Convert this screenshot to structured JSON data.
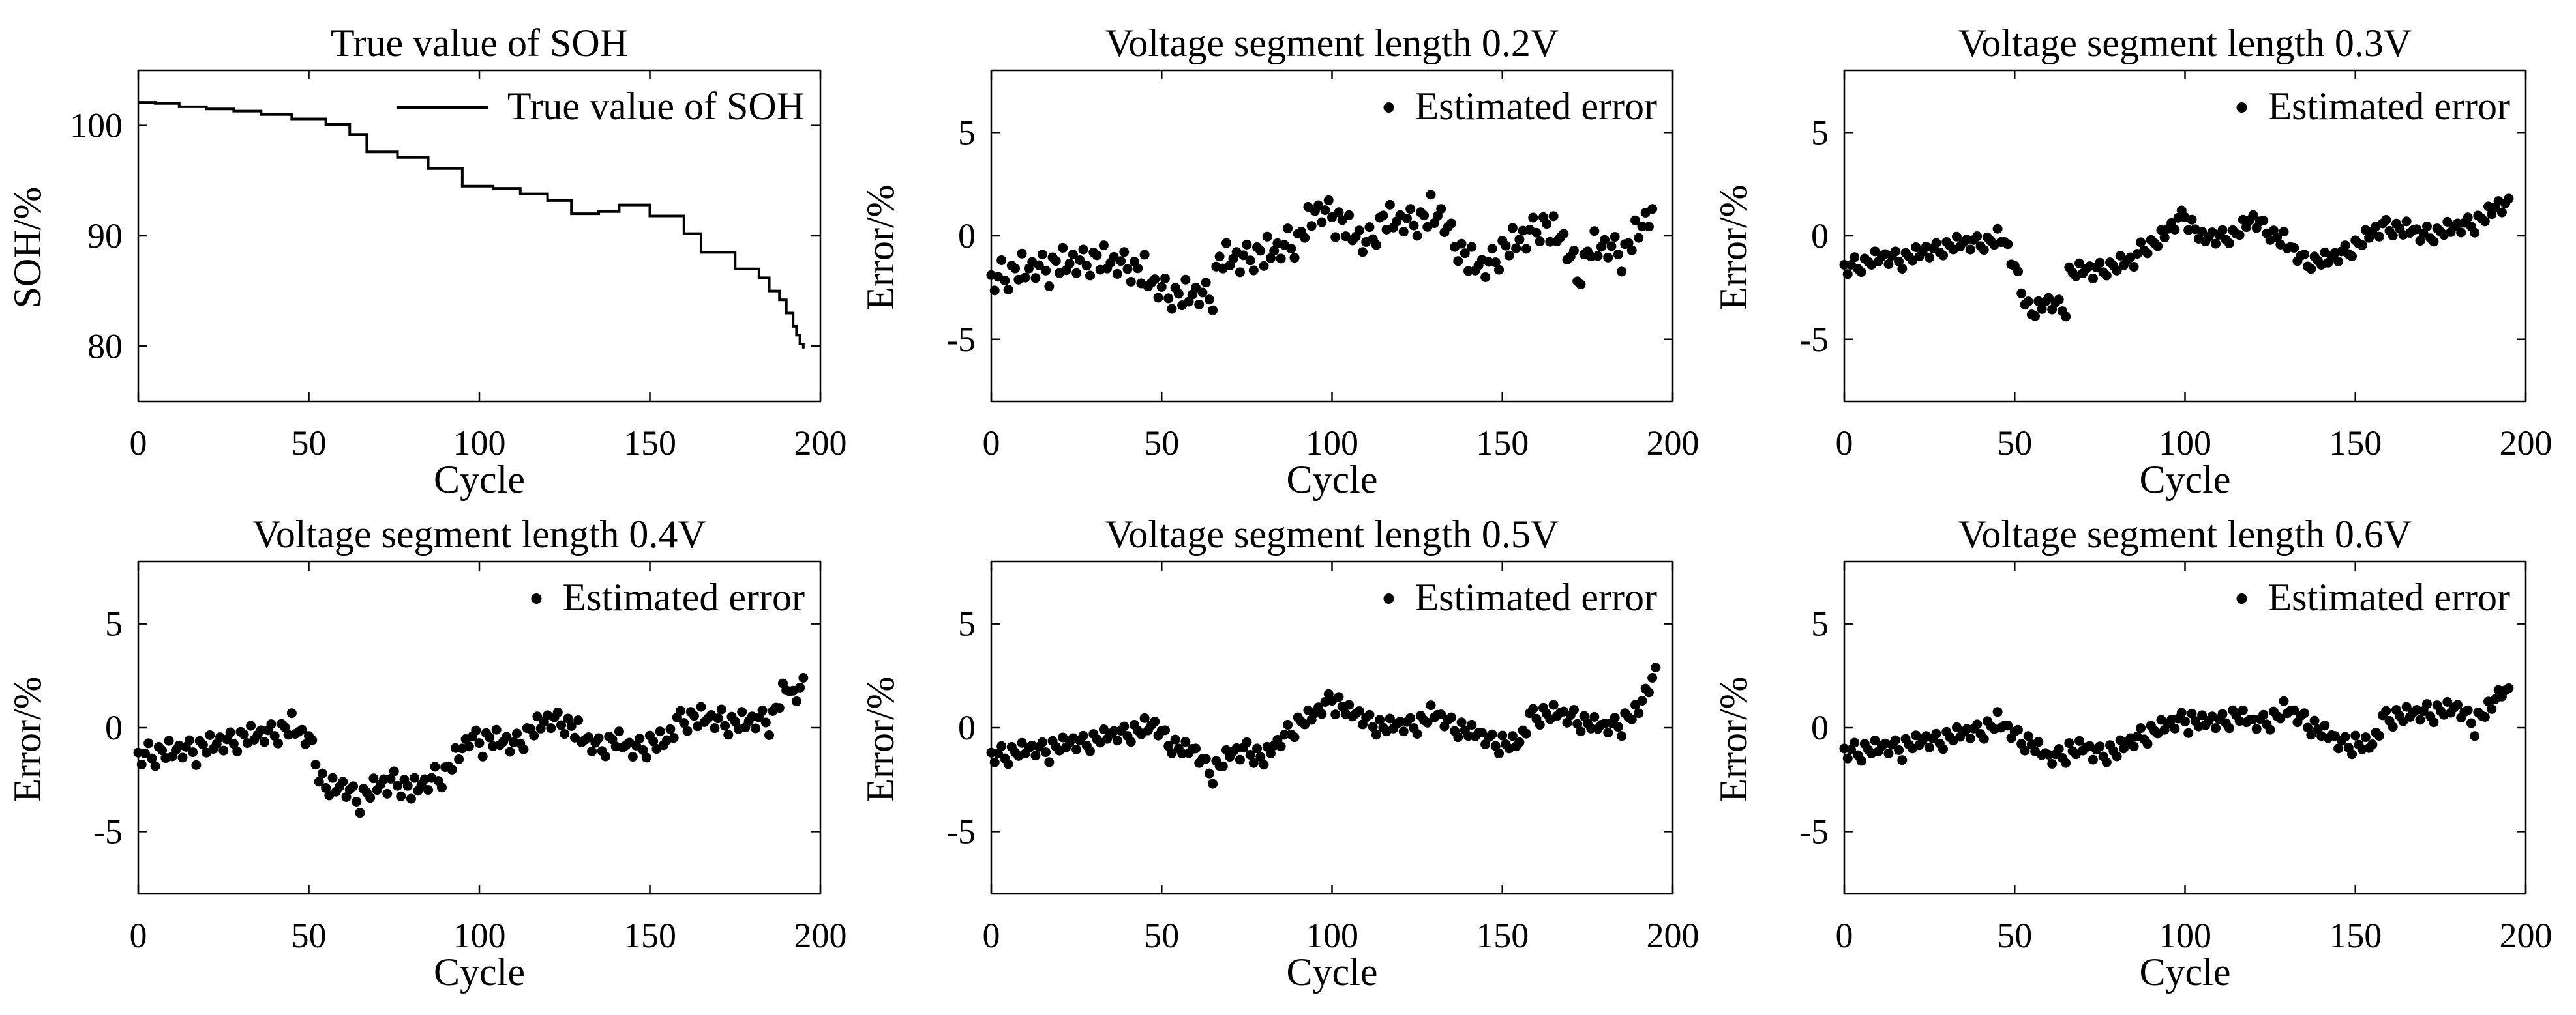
{
  "figure": {
    "background": "#ffffff",
    "ink": "#000000"
  },
  "chart_data": [
    {
      "type": "line",
      "title": "True value of SOH",
      "xlabel": "Cycle",
      "ylabel": "SOH/%",
      "xlim": [
        0,
        200
      ],
      "ylim": [
        75,
        105
      ],
      "xticks": [
        0,
        50,
        100,
        150,
        200
      ],
      "yticks": [
        80,
        90,
        100
      ],
      "grid": false,
      "legend": {
        "placement": "top-right",
        "entries": [
          {
            "label": "True value of SOH",
            "marker": "line"
          }
        ]
      },
      "series": [
        {
          "name": "True value of SOH",
          "style": "step",
          "x": [
            0,
            5,
            12,
            20,
            28,
            36,
            45,
            55,
            62,
            67,
            76,
            85,
            95,
            104,
            112,
            120,
            127,
            135,
            141,
            150,
            160,
            165,
            175,
            182,
            185,
            188,
            190,
            192,
            193,
            194,
            195
          ],
          "y": [
            102.1,
            102.0,
            101.7,
            101.5,
            101.3,
            101.0,
            100.6,
            100.1,
            99.2,
            97.6,
            97.1,
            96.1,
            94.5,
            94.3,
            93.8,
            93.2,
            92.0,
            92.2,
            92.8,
            91.8,
            90.2,
            88.5,
            87.0,
            86.2,
            85.0,
            84.2,
            83.0,
            81.8,
            81.0,
            80.2,
            79.8
          ]
        }
      ]
    },
    {
      "type": "scatter",
      "title": "Voltage segment length 0.2V",
      "xlabel": "Cycle",
      "ylabel": "Error/%",
      "xlim": [
        0,
        200
      ],
      "ylim": [
        -8,
        8
      ],
      "xticks": [
        0,
        50,
        100,
        150,
        200
      ],
      "yticks": [
        -5,
        0,
        5
      ],
      "grid": false,
      "legend": {
        "placement": "top-right",
        "entries": [
          {
            "label": "Estimated error",
            "marker": "dot"
          }
        ]
      },
      "series": [
        {
          "name": "Estimated error",
          "knots": [
            [
              0,
              -2.2
            ],
            [
              10,
              -1.6
            ],
            [
              30,
              -1.2
            ],
            [
              40,
              -1.4
            ],
            [
              48,
              -2.4
            ],
            [
              55,
              -3.0
            ],
            [
              60,
              -2.8
            ],
            [
              65,
              -2.9
            ],
            [
              67,
              -1.2
            ],
            [
              80,
              -0.9
            ],
            [
              90,
              -0.3
            ],
            [
              95,
              1.2
            ],
            [
              100,
              1.1
            ],
            [
              105,
              0.2
            ],
            [
              110,
              -0.4
            ],
            [
              115,
              0.7
            ],
            [
              125,
              0.7
            ],
            [
              132,
              1.0
            ],
            [
              135,
              0.0
            ],
            [
              140,
              -1.3
            ],
            [
              145,
              -1.5
            ],
            [
              150,
              -0.8
            ],
            [
              158,
              0.2
            ],
            [
              162,
              0.5
            ],
            [
              168,
              -0.2
            ],
            [
              172,
              -2.0
            ],
            [
              176,
              -0.6
            ],
            [
              180,
              -0.5
            ],
            [
              186,
              -0.8
            ],
            [
              190,
              0.2
            ],
            [
              194,
              1.2
            ]
          ],
          "offsets": [
            0.3,
            -0.5,
            0.1,
            0.6,
            -0.2,
            -0.7,
            0.4,
            0.2,
            -0.4,
            0.8,
            -0.3,
            0.0
          ]
        }
      ]
    },
    {
      "type": "scatter",
      "title": "Voltage segment length 0.3V",
      "xlabel": "Cycle",
      "ylabel": "Error/%",
      "xlim": [
        0,
        200
      ],
      "ylim": [
        -8,
        8
      ],
      "xticks": [
        0,
        50,
        100,
        150,
        200
      ],
      "yticks": [
        -5,
        0,
        5
      ],
      "grid": false,
      "legend": {
        "placement": "top-right",
        "entries": [
          {
            "label": "Estimated error",
            "marker": "dot"
          }
        ]
      },
      "series": [
        {
          "name": "Estimated error",
          "knots": [
            [
              0,
              -1.6
            ],
            [
              10,
              -1.1
            ],
            [
              20,
              -1.0
            ],
            [
              30,
              -0.5
            ],
            [
              40,
              -0.3
            ],
            [
              46,
              -0.2
            ],
            [
              48,
              -0.6
            ],
            [
              52,
              -2.5
            ],
            [
              55,
              -3.8
            ],
            [
              60,
              -3.2
            ],
            [
              65,
              -3.5
            ],
            [
              66,
              -1.8
            ],
            [
              75,
              -1.6
            ],
            [
              85,
              -1.2
            ],
            [
              88,
              -0.5
            ],
            [
              92,
              -0.3
            ],
            [
              97,
              0.6
            ],
            [
              100,
              1.1
            ],
            [
              105,
              -0.2
            ],
            [
              115,
              0.1
            ],
            [
              120,
              0.8
            ],
            [
              125,
              0.2
            ],
            [
              130,
              -0.5
            ],
            [
              135,
              -1.2
            ],
            [
              142,
              -1.2
            ],
            [
              150,
              -0.5
            ],
            [
              158,
              0.5
            ],
            [
              165,
              0.3
            ],
            [
              170,
              0.0
            ],
            [
              180,
              0.4
            ],
            [
              188,
              0.9
            ],
            [
              192,
              1.4
            ],
            [
              195,
              1.5
            ]
          ],
          "offsets": [
            0.2,
            -0.3,
            0.1,
            0.3,
            -0.2,
            -0.4,
            0.2,
            0.0,
            -0.2,
            0.4,
            -0.1,
            0.1
          ]
        }
      ]
    },
    {
      "type": "scatter",
      "title": "Voltage segment length 0.4V",
      "xlabel": "Cycle",
      "ylabel": "Error/%",
      "xlim": [
        0,
        200
      ],
      "ylim": [
        -8,
        8
      ],
      "xticks": [
        0,
        50,
        100,
        150,
        200
      ],
      "yticks": [
        -5,
        0,
        5
      ],
      "grid": false,
      "legend": {
        "placement": "top-right",
        "entries": [
          {
            "label": "Estimated error",
            "marker": "dot"
          }
        ]
      },
      "series": [
        {
          "name": "Estimated error",
          "knots": [
            [
              0,
              -1.4
            ],
            [
              10,
              -1.1
            ],
            [
              20,
              -0.9
            ],
            [
              30,
              -0.5
            ],
            [
              40,
              -0.2
            ],
            [
              45,
              0.0
            ],
            [
              50,
              -0.5
            ],
            [
              52,
              -1.5
            ],
            [
              55,
              -3.0
            ],
            [
              60,
              -2.8
            ],
            [
              65,
              -3.5
            ],
            [
              70,
              -2.8
            ],
            [
              75,
              -2.5
            ],
            [
              80,
              -3.0
            ],
            [
              85,
              -2.6
            ],
            [
              90,
              -2.2
            ],
            [
              95,
              -1.0
            ],
            [
              97,
              -0.5
            ],
            [
              105,
              -0.6
            ],
            [
              110,
              -0.8
            ],
            [
              115,
              -0.2
            ],
            [
              120,
              0.4
            ],
            [
              125,
              0.3
            ],
            [
              130,
              -0.5
            ],
            [
              135,
              -0.9
            ],
            [
              140,
              -0.6
            ],
            [
              145,
              -1.0
            ],
            [
              150,
              -0.8
            ],
            [
              155,
              -0.6
            ],
            [
              158,
              0.4
            ],
            [
              165,
              0.5
            ],
            [
              175,
              0.2
            ],
            [
              182,
              0.4
            ],
            [
              186,
              0.5
            ],
            [
              190,
              2.0
            ],
            [
              192,
              1.5
            ],
            [
              195,
              2.0
            ]
          ],
          "offsets": [
            0.2,
            -0.4,
            0.1,
            0.4,
            -0.2,
            -0.6,
            0.3,
            0.1,
            -0.3,
            0.5,
            -0.2,
            0.0
          ]
        }
      ]
    },
    {
      "type": "scatter",
      "title": "Voltage segment length 0.5V",
      "xlabel": "Cycle",
      "ylabel": "Error/%",
      "xlim": [
        0,
        200
      ],
      "ylim": [
        -8,
        8
      ],
      "xticks": [
        0,
        50,
        100,
        150,
        200
      ],
      "yticks": [
        -5,
        0,
        5
      ],
      "grid": false,
      "legend": {
        "placement": "top-right",
        "entries": [
          {
            "label": "Estimated error",
            "marker": "dot"
          }
        ]
      },
      "series": [
        {
          "name": "Estimated error",
          "knots": [
            [
              0,
              -1.4
            ],
            [
              10,
              -1.1
            ],
            [
              20,
              -0.9
            ],
            [
              30,
              -0.6
            ],
            [
              40,
              -0.2
            ],
            [
              45,
              -0.1
            ],
            [
              48,
              0.1
            ],
            [
              52,
              -0.6
            ],
            [
              55,
              -1.0
            ],
            [
              60,
              -1.2
            ],
            [
              65,
              -2.2
            ],
            [
              70,
              -1.3
            ],
            [
              75,
              -1.0
            ],
            [
              80,
              -1.5
            ],
            [
              85,
              -0.6
            ],
            [
              90,
              0.2
            ],
            [
              95,
              0.6
            ],
            [
              100,
              1.5
            ],
            [
              105,
              0.7
            ],
            [
              110,
              0.4
            ],
            [
              115,
              0.0
            ],
            [
              120,
              0.1
            ],
            [
              125,
              0.2
            ],
            [
              130,
              0.6
            ],
            [
              135,
              0.2
            ],
            [
              140,
              -0.2
            ],
            [
              145,
              -0.5
            ],
            [
              150,
              -0.8
            ],
            [
              155,
              -0.8
            ],
            [
              158,
              0.6
            ],
            [
              165,
              0.7
            ],
            [
              170,
              0.5
            ],
            [
              175,
              0.2
            ],
            [
              180,
              0.0
            ],
            [
              185,
              0.3
            ],
            [
              190,
              0.8
            ],
            [
              193,
              2.0
            ],
            [
              195,
              2.6
            ]
          ],
          "offsets": [
            0.2,
            -0.3,
            0.1,
            0.3,
            -0.2,
            -0.5,
            0.3,
            0.0,
            -0.2,
            0.4,
            -0.1,
            0.1
          ]
        }
      ]
    },
    {
      "type": "scatter",
      "title": "Voltage segment length 0.6V",
      "xlabel": "Cycle",
      "ylabel": "Error/%",
      "xlim": [
        0,
        200
      ],
      "ylim": [
        -8,
        8
      ],
      "xticks": [
        0,
        50,
        100,
        150,
        200
      ],
      "yticks": [
        -5,
        0,
        5
      ],
      "grid": false,
      "legend": {
        "placement": "top-right",
        "entries": [
          {
            "label": "Estimated error",
            "marker": "dot"
          }
        ]
      },
      "series": [
        {
          "name": "Estimated error",
          "knots": [
            [
              0,
              -1.2
            ],
            [
              10,
              -1.0
            ],
            [
              20,
              -0.8
            ],
            [
              30,
              -0.5
            ],
            [
              40,
              -0.1
            ],
            [
              45,
              0.2
            ],
            [
              50,
              -0.3
            ],
            [
              55,
              -0.8
            ],
            [
              60,
              -1.5
            ],
            [
              65,
              -1.2
            ],
            [
              70,
              -1.0
            ],
            [
              75,
              -1.2
            ],
            [
              80,
              -1.1
            ],
            [
              85,
              -0.6
            ],
            [
              90,
              -0.2
            ],
            [
              95,
              0.1
            ],
            [
              100,
              0.5
            ],
            [
              105,
              0.2
            ],
            [
              110,
              0.3
            ],
            [
              115,
              0.6
            ],
            [
              120,
              0.2
            ],
            [
              125,
              0.4
            ],
            [
              130,
              0.8
            ],
            [
              135,
              0.4
            ],
            [
              140,
              -0.2
            ],
            [
              145,
              -0.7
            ],
            [
              150,
              -0.8
            ],
            [
              155,
              -0.9
            ],
            [
              158,
              0.5
            ],
            [
              165,
              0.6
            ],
            [
              170,
              0.7
            ],
            [
              175,
              0.8
            ],
            [
              180,
              0.9
            ],
            [
              185,
              0.3
            ],
            [
              190,
              1.0
            ],
            [
              193,
              1.8
            ],
            [
              195,
              1.6
            ]
          ],
          "offsets": [
            0.2,
            -0.3,
            0.1,
            0.3,
            -0.2,
            -0.5,
            0.3,
            0.0,
            -0.2,
            0.4,
            -0.1,
            0.1
          ]
        }
      ]
    }
  ]
}
